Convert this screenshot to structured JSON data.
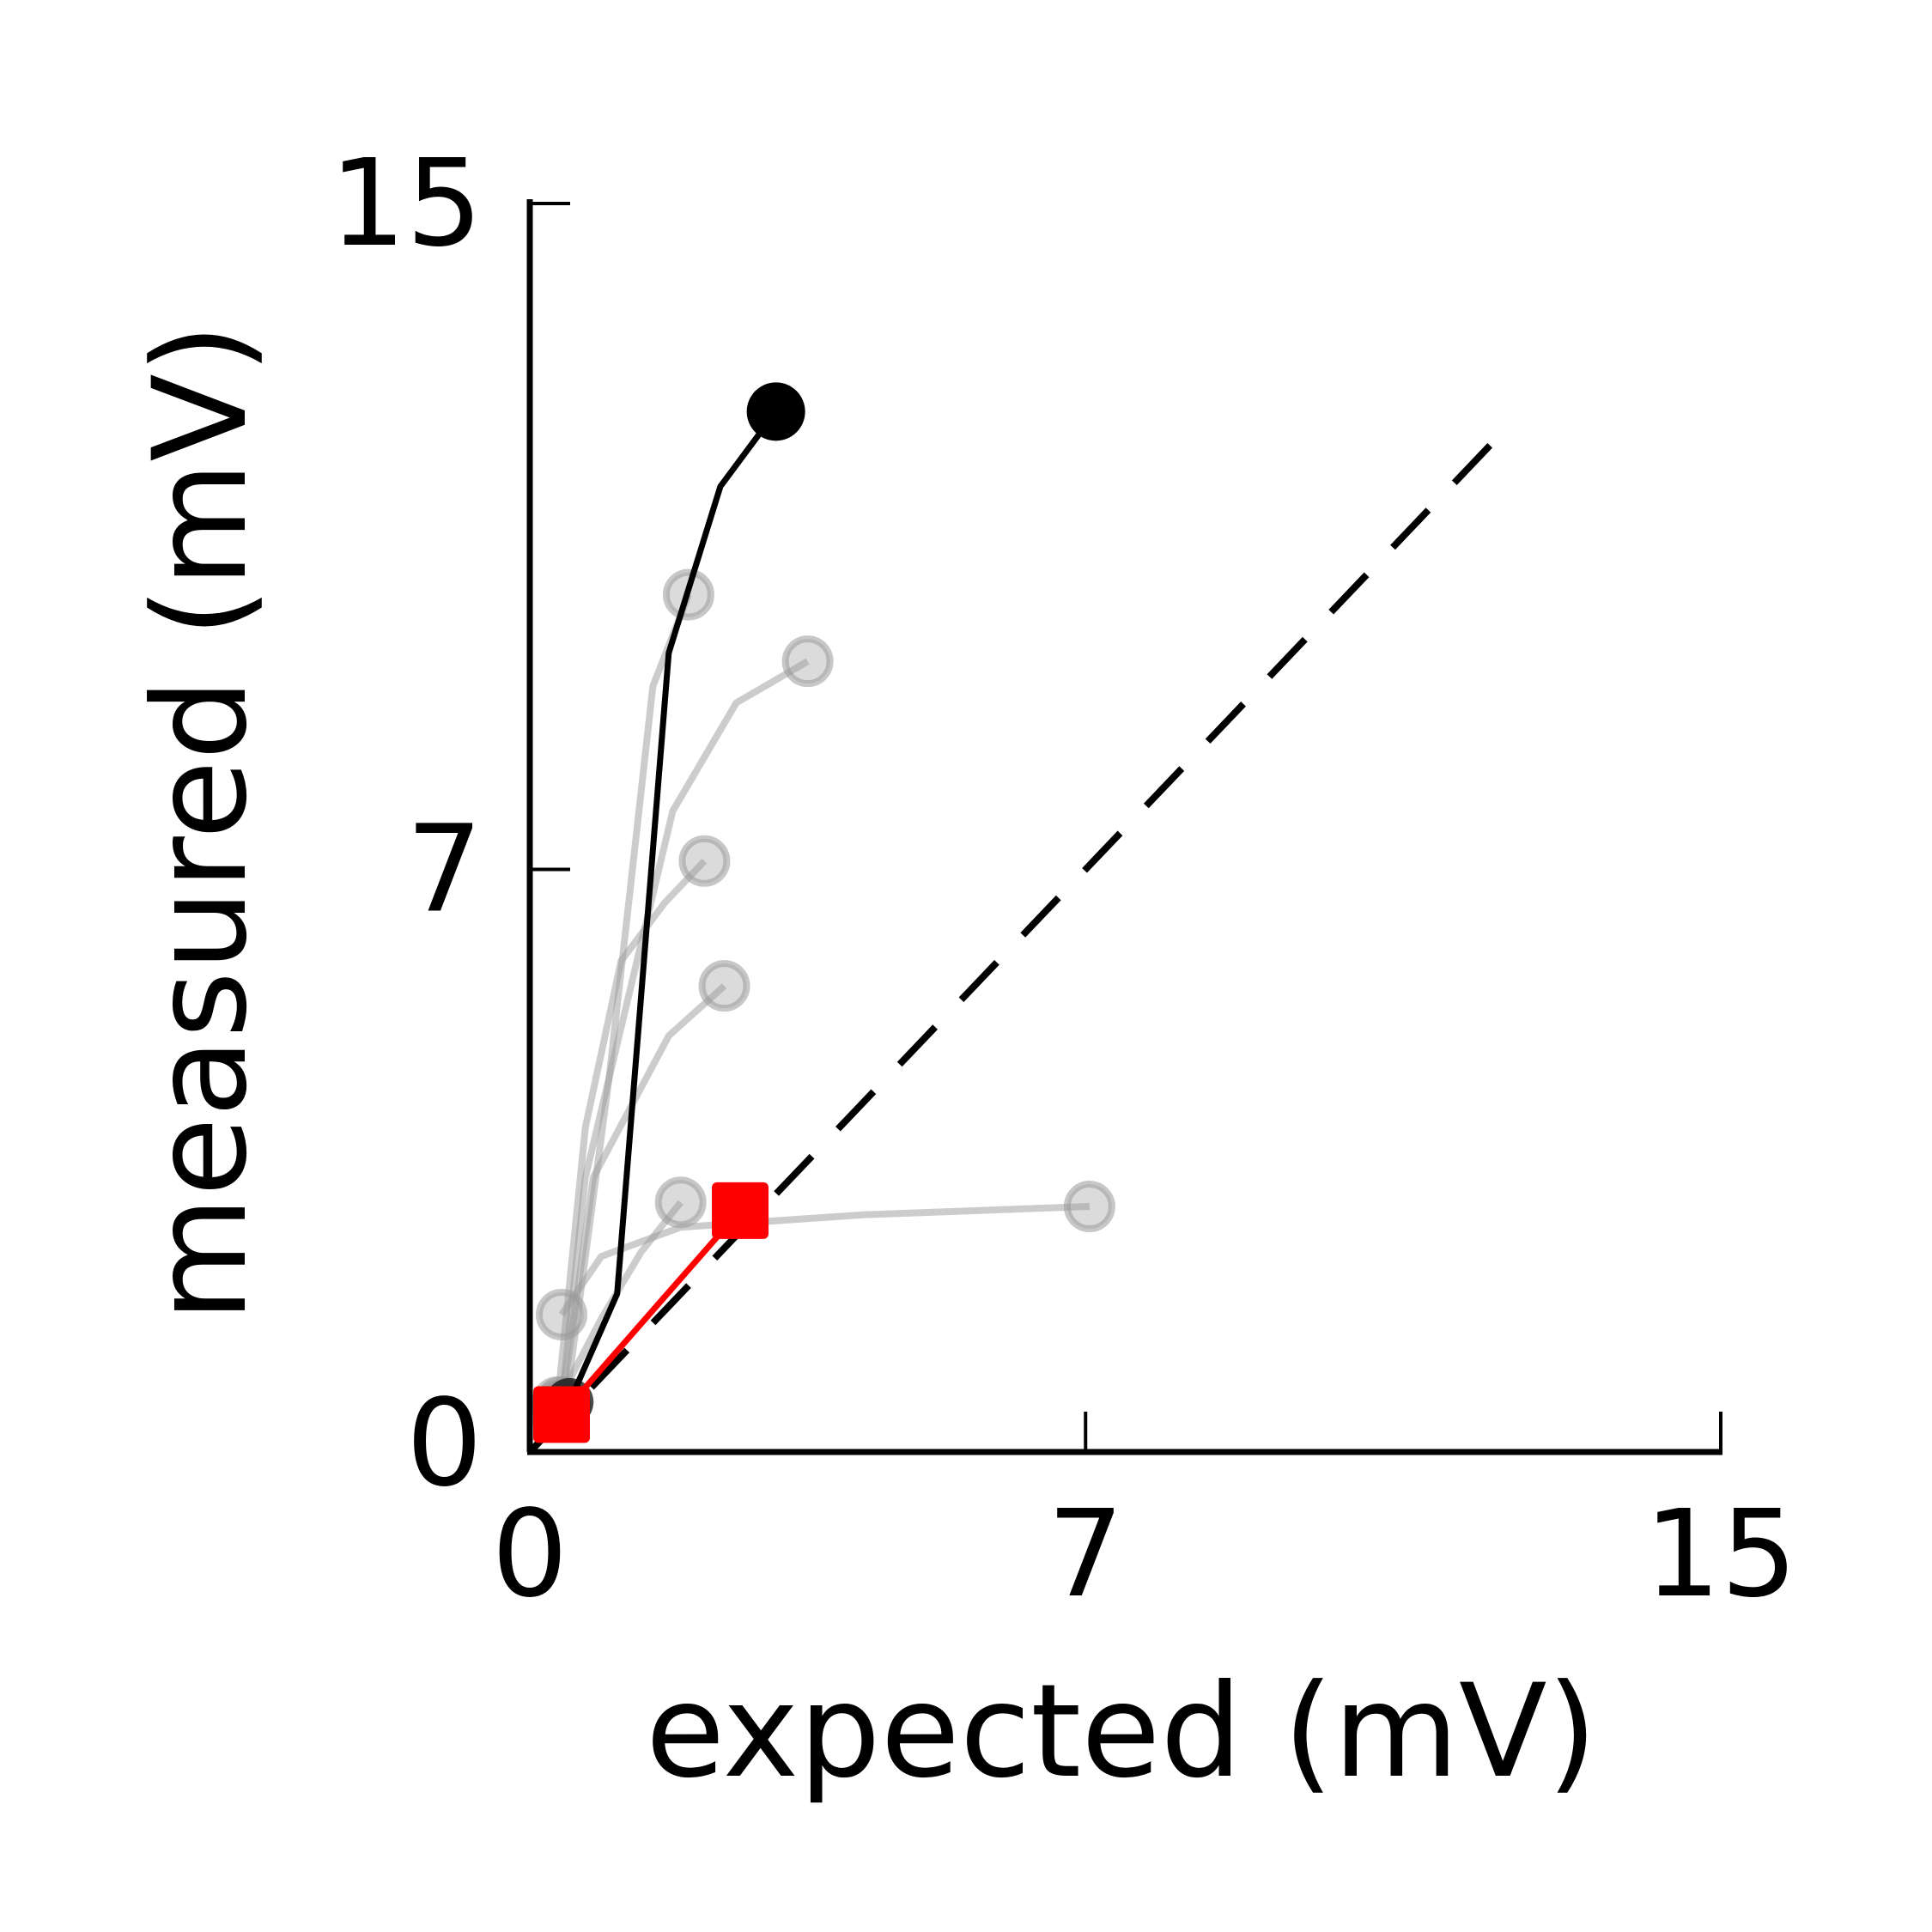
{
  "chart_data": {
    "type": "line",
    "title": "",
    "xlabel": "expected (mV)",
    "ylabel": "measured (mV)",
    "xlim": [
      0,
      15
    ],
    "ylim": [
      0,
      15
    ],
    "xticks": [
      0,
      7,
      15
    ],
    "yticks": [
      0,
      7,
      15
    ],
    "xtick_labels": [
      "0",
      "7",
      "15"
    ],
    "ytick_labels": [
      "0",
      "7",
      "15"
    ],
    "grid": false,
    "colors": {
      "background": "#ffffff",
      "axis": "#000000",
      "individual": "#999999",
      "highlight": "#000000",
      "average": "#ff0000",
      "identity": "#000000"
    },
    "identity_line": {
      "x": [
        0,
        12.4
      ],
      "y": [
        0,
        12.4
      ],
      "style": "dashed"
    },
    "series": [
      {
        "role": "highlight",
        "marker": "circle",
        "x": [
          0.5,
          1.1,
          1.75,
          2.4,
          3.1
        ],
        "y": [
          0.6,
          1.9,
          9.6,
          11.6,
          12.5
        ]
      },
      {
        "role": "individual",
        "marker": "circle",
        "x": [
          0.45,
          1.0,
          1.55,
          2.0
        ],
        "y": [
          0.55,
          4.5,
          9.2,
          10.3
        ]
      },
      {
        "role": "individual",
        "marker": "circle",
        "x": [
          0.4,
          0.7,
          1.8,
          2.6,
          3.5
        ],
        "y": [
          0.6,
          3.3,
          7.7,
          9.0,
          9.5
        ]
      },
      {
        "role": "individual",
        "marker": "circle",
        "x": [
          0.35,
          0.7,
          1.15,
          1.7,
          2.2
        ],
        "y": [
          0.6,
          3.9,
          5.9,
          6.6,
          7.1
        ]
      },
      {
        "role": "individual",
        "marker": "circle",
        "x": [
          0.4,
          0.8,
          1.75,
          2.45
        ],
        "y": [
          0.55,
          3.3,
          5.0,
          5.6
        ]
      },
      {
        "role": "individual",
        "marker": "circle",
        "x": [
          0.3,
          0.9,
          1.4,
          1.9
        ],
        "y": [
          0.5,
          1.6,
          2.4,
          3.0
        ]
      },
      {
        "role": "individual",
        "marker": "circle",
        "x": [
          0.4,
          0.9,
          1.9,
          4.2,
          7.05
        ],
        "y": [
          1.65,
          2.35,
          2.7,
          2.85,
          2.95
        ]
      },
      {
        "role": "average",
        "marker": "square",
        "x": [
          0.4,
          2.65
        ],
        "y": [
          0.45,
          2.9
        ]
      }
    ]
  }
}
